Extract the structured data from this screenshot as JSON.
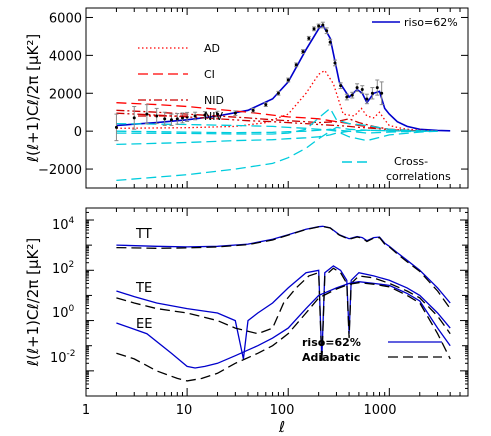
{
  "chart_data": [
    {
      "type": "line",
      "xscale": "log",
      "xlim": [
        1,
        6000
      ],
      "ylim": [
        -3000,
        6500
      ],
      "ylabel": "ℓ(ℓ+1)Cℓ/2π [μK²]",
      "yticks": [
        -2000,
        0,
        2000,
        4000,
        6000
      ],
      "tick_labels_y": [
        "−2000",
        "0",
        "2000",
        "4000",
        "6000"
      ],
      "legend_left": [
        "AD",
        "CI",
        "NID",
        "NIV"
      ],
      "legend_right": "riso=62%",
      "annotation": [
        "Cross-",
        "correlations"
      ],
      "colors": {
        "total": "#0000cc",
        "AD": "#ff0000",
        "CI": "#ff0000",
        "NID": "#cc0000",
        "NIV": "#cc0000",
        "cross": "#00ccdd"
      },
      "series": [
        {
          "name": "riso=62%",
          "style": "solid",
          "x": [
            2,
            5,
            10,
            20,
            40,
            70,
            100,
            150,
            200,
            220,
            260,
            320,
            400,
            480,
            540,
            600,
            700,
            800,
            900,
            1000,
            1200,
            1500,
            2000,
            3000,
            4000
          ],
          "y": [
            300,
            450,
            600,
            800,
            1100,
            1700,
            2600,
            4300,
            5400,
            5600,
            4900,
            2600,
            1800,
            2200,
            2000,
            1500,
            2000,
            2100,
            1200,
            900,
            500,
            250,
            100,
            40,
            20
          ]
        },
        {
          "name": "AD",
          "style": "dotted",
          "x": [
            2,
            10,
            30,
            60,
            100,
            150,
            200,
            230,
            280,
            350,
            450,
            530,
            600,
            700,
            800,
            900,
            1000,
            1200,
            1500,
            2000,
            3000
          ],
          "y": [
            150,
            180,
            250,
            450,
            900,
            2000,
            3000,
            3200,
            2500,
            900,
            800,
            1200,
            800,
            700,
            1000,
            600,
            300,
            200,
            100,
            50,
            15
          ]
        },
        {
          "name": "CI",
          "style": "dashed",
          "x": [
            2,
            5,
            10,
            20,
            40,
            70,
            100,
            150,
            200,
            300,
            400,
            500,
            700,
            1000,
            1500,
            2000
          ],
          "y": [
            1500,
            1400,
            1300,
            1150,
            1000,
            850,
            750,
            700,
            650,
            500,
            400,
            300,
            200,
            100,
            50,
            10
          ]
        },
        {
          "name": "NID",
          "style": "dashdot",
          "x": [
            2,
            5,
            10,
            20,
            40,
            70,
            100,
            150,
            200,
            300,
            400,
            500,
            700,
            1000,
            1500,
            2000
          ],
          "y": [
            1100,
            1000,
            900,
            800,
            700,
            600,
            550,
            500,
            450,
            500,
            650,
            450,
            250,
            100,
            40,
            10
          ]
        },
        {
          "name": "NIV",
          "style": "dashdotdot",
          "x": [
            2,
            5,
            10,
            20,
            40,
            70,
            100,
            150,
            200,
            300,
            400,
            500,
            700,
            1000,
            1500,
            2000
          ],
          "y": [
            950,
            850,
            750,
            650,
            550,
            500,
            450,
            400,
            350,
            300,
            250,
            200,
            150,
            80,
            30,
            10
          ]
        },
        {
          "name": "cross-1",
          "style": "dashed",
          "x": [
            2,
            10,
            30,
            70,
            100,
            150,
            200,
            260,
            300,
            400,
            600,
            1000,
            2000,
            3000
          ],
          "y": [
            -2600,
            -2300,
            -2000,
            -1700,
            -1400,
            -900,
            -400,
            0,
            200,
            100,
            50,
            20,
            0,
            0
          ]
        },
        {
          "name": "cross-2",
          "style": "dashed",
          "x": [
            2,
            10,
            30,
            70,
            100,
            150,
            200,
            260,
            300,
            400,
            600,
            1000,
            2000,
            3000
          ],
          "y": [
            -700,
            -600,
            -500,
            -450,
            -400,
            -350,
            -300,
            -200,
            -100,
            0,
            50,
            20,
            0,
            0
          ]
        },
        {
          "name": "cross-3",
          "style": "dashed",
          "x": [
            2,
            10,
            30,
            70,
            100,
            150,
            200,
            260,
            300,
            400,
            600,
            1000,
            2000,
            3000
          ],
          "y": [
            -100,
            -120,
            -150,
            -150,
            -100,
            100,
            700,
            1200,
            600,
            400,
            300,
            100,
            20,
            0
          ]
        },
        {
          "name": "cross-4",
          "style": "dashed",
          "x": [
            2,
            10,
            30,
            70,
            100,
            150,
            200,
            260,
            300,
            400,
            600,
            1000,
            2000,
            3000
          ],
          "y": [
            400,
            350,
            300,
            250,
            200,
            150,
            100,
            50,
            0,
            -300,
            -500,
            -200,
            -50,
            0
          ]
        },
        {
          "name": "cross-5",
          "style": "dashed",
          "x": [
            2,
            10,
            30,
            70,
            100,
            150,
            200,
            260,
            300,
            400,
            600,
            1000,
            2000,
            3000
          ],
          "y": [
            0,
            -50,
            -80,
            -60,
            -30,
            0,
            50,
            100,
            50,
            0,
            -100,
            -50,
            0,
            0
          ]
        }
      ],
      "data_points": {
        "x": [
          2,
          3,
          4,
          5,
          6,
          7,
          8,
          9,
          10,
          12,
          15,
          20,
          30,
          45,
          60,
          80,
          100,
          120,
          140,
          160,
          180,
          200,
          220,
          240,
          260,
          290,
          330,
          380,
          430,
          480,
          540,
          600,
          680,
          760,
          840
        ],
        "y": [
          200,
          700,
          900,
          800,
          650,
          600,
          650,
          700,
          750,
          800,
          850,
          900,
          950,
          1100,
          1400,
          2000,
          2700,
          3500,
          4200,
          4900,
          5400,
          5550,
          5600,
          5300,
          4700,
          3600,
          2400,
          1800,
          1900,
          2300,
          2200,
          1700,
          2000,
          2300,
          2000
        ],
        "err": [
          700,
          600,
          500,
          400,
          350,
          300,
          280,
          260,
          240,
          200,
          180,
          150,
          120,
          100,
          100,
          100,
          100,
          100,
          100,
          100,
          100,
          100,
          150,
          150,
          150,
          150,
          150,
          150,
          150,
          200,
          200,
          250,
          300,
          400,
          600
        ]
      }
    },
    {
      "type": "line",
      "xscale": "log",
      "yscale": "log",
      "xlim": [
        1,
        6000
      ],
      "ylim": [
        0.001,
        30000
      ],
      "xlabel": "ℓ",
      "ylabel": "ℓ(ℓ+1)Cℓ/2π [μK²]",
      "tick_labels_x": [
        "1",
        "10",
        "100",
        "1000"
      ],
      "tick_labels_y_mantissa": [
        "10",
        "10",
        "10",
        "10"
      ],
      "tick_labels_y_exponent": [
        "-2",
        "0",
        "2",
        "4"
      ],
      "curve_labels": [
        "TT",
        "TE",
        "EE"
      ],
      "legend": [
        "riso=62%",
        "Adiabatic"
      ],
      "colors": {
        "riso": "#0000cc",
        "adiabatic": "#000000"
      },
      "series": [
        {
          "name": "TT riso=62%",
          "style": "solid",
          "x": [
            2,
            5,
            10,
            20,
            40,
            70,
            100,
            150,
            200,
            220,
            260,
            320,
            400,
            480,
            540,
            600,
            700,
            800,
            900,
            1000,
            1200,
            1500,
            2000,
            3000,
            4000
          ],
          "y": [
            1000,
            900,
            850,
            900,
            1100,
            1700,
            2600,
            4300,
            5400,
            5600,
            4900,
            2600,
            1800,
            2200,
            2000,
            1500,
            2000,
            2100,
            1200,
            900,
            500,
            250,
            100,
            20,
            5
          ]
        },
        {
          "name": "TT Adiabatic",
          "style": "dashed",
          "x": [
            2,
            5,
            10,
            20,
            40,
            70,
            100,
            150,
            200,
            220,
            260,
            320,
            400,
            480,
            540,
            600,
            700,
            800,
            900,
            1000,
            1200,
            1500,
            2000,
            3000,
            4000
          ],
          "y": [
            800,
            750,
            780,
            850,
            1050,
            1600,
            2500,
            4200,
            5300,
            5500,
            4800,
            2500,
            1700,
            2100,
            1900,
            1400,
            1900,
            2000,
            1100,
            850,
            450,
            220,
            90,
            15,
            3
          ]
        },
        {
          "name": "TE riso=62%",
          "style": "solid",
          "x": [
            2,
            3,
            5,
            10,
            20,
            30,
            36,
            40,
            50,
            70,
            100,
            150,
            200,
            215,
            230,
            280,
            330,
            380,
            400,
            420,
            500,
            700,
            1000,
            1500,
            2000,
            3000,
            4000
          ],
          "y": [
            15,
            9,
            5,
            3,
            2,
            1,
            0.03,
            1,
            2,
            5,
            20,
            80,
            100,
            0.03,
            80,
            150,
            100,
            40,
            0.3,
            40,
            80,
            60,
            40,
            20,
            10,
            2,
            0.5
          ]
        },
        {
          "name": "TE Adiabatic",
          "style": "dashed",
          "x": [
            2,
            3,
            5,
            10,
            20,
            30,
            50,
            70,
            90,
            120,
            160,
            200,
            215,
            230,
            280,
            330,
            380,
            400,
            420,
            500,
            700,
            1000,
            1500,
            2000,
            3000,
            4000
          ],
          "y": [
            8,
            5,
            3,
            2,
            1,
            0.5,
            0.3,
            0.5,
            5,
            20,
            60,
            80,
            0.02,
            60,
            120,
            80,
            30,
            0.2,
            30,
            60,
            50,
            30,
            15,
            8,
            1.5,
            0.3
          ]
        },
        {
          "name": "EE riso=62%",
          "style": "solid",
          "x": [
            2,
            4,
            7,
            10,
            12,
            15,
            20,
            30,
            50,
            70,
            100,
            150,
            200,
            300,
            400,
            500,
            700,
            1000,
            1500,
            2000,
            3000,
            4000
          ],
          "y": [
            0.8,
            0.3,
            0.05,
            0.015,
            0.013,
            0.015,
            0.02,
            0.04,
            0.1,
            0.2,
            0.5,
            3,
            10,
            20,
            30,
            35,
            30,
            25,
            12,
            6,
            0.5,
            0.1
          ]
        },
        {
          "name": "EE Adiabatic",
          "style": "dashed",
          "x": [
            2,
            3,
            5,
            8,
            10,
            14,
            20,
            30,
            50,
            70,
            100,
            150,
            200,
            300,
            400,
            500,
            700,
            1000,
            1500,
            2000,
            3000,
            4000
          ],
          "y": [
            0.05,
            0.03,
            0.01,
            0.005,
            0.004,
            0.005,
            0.008,
            0.02,
            0.05,
            0.1,
            0.3,
            2,
            8,
            18,
            28,
            32,
            28,
            22,
            10,
            5,
            0.3,
            0.03
          ]
        }
      ]
    }
  ]
}
